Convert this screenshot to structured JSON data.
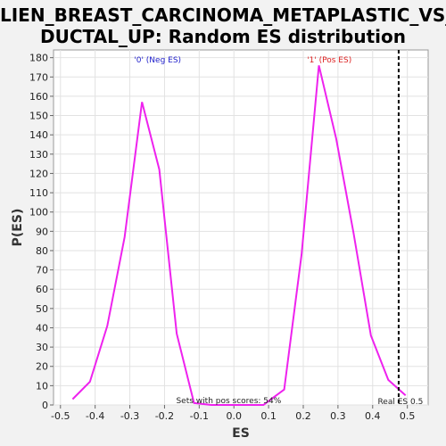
{
  "chart_data": {
    "type": "line",
    "title_line1": "LIEN_BREAST_CARCINOMA_METAPLASTIC_VS_",
    "title_line2": "DUCTAL_UP: Random ES distribution",
    "xlabel": "ES",
    "ylabel": "P(ES)",
    "xlim": [
      -0.52,
      0.56
    ],
    "ylim": [
      0,
      184
    ],
    "x_ticks": [
      "-0.5",
      "-0.4",
      "-0.3",
      "-0.2",
      "-0.1",
      "0.0",
      "0.1",
      "0.2",
      "0.3",
      "0.4",
      "0.5"
    ],
    "x_tick_values": [
      -0.5,
      -0.4,
      -0.3,
      -0.2,
      -0.1,
      0.0,
      0.1,
      0.2,
      0.3,
      0.4,
      0.5
    ],
    "y_ticks": [
      0,
      10,
      20,
      30,
      40,
      50,
      60,
      70,
      80,
      90,
      100,
      110,
      120,
      130,
      140,
      150,
      160,
      170,
      180
    ],
    "series": [
      {
        "color": "#ee22ee",
        "x": [
          -0.465,
          -0.415,
          -0.365,
          -0.315,
          -0.265,
          -0.215,
          -0.165,
          -0.115,
          -0.065,
          -0.015,
          0.035,
          0.085,
          0.115,
          0.145,
          0.195,
          0.245,
          0.295,
          0.345,
          0.395,
          0.445,
          0.495
        ],
        "y": [
          3,
          12,
          41,
          87,
          157,
          122,
          37,
          1,
          0,
          0,
          0,
          0,
          4,
          8,
          78,
          176,
          138,
          89,
          36,
          13,
          5
        ]
      }
    ],
    "real_es": 0.475,
    "annotations": {
      "neg": "'0' (Neg ES)",
      "pos": "'1' (Pos ES)",
      "pos_scores": "Sets with pos scores: 54%",
      "real_es": "Real ES 0.5"
    },
    "colors": {
      "neg": "#2222cc",
      "pos": "#dd2222",
      "line": "#ee22ee",
      "real_es_line": "#000000"
    }
  }
}
